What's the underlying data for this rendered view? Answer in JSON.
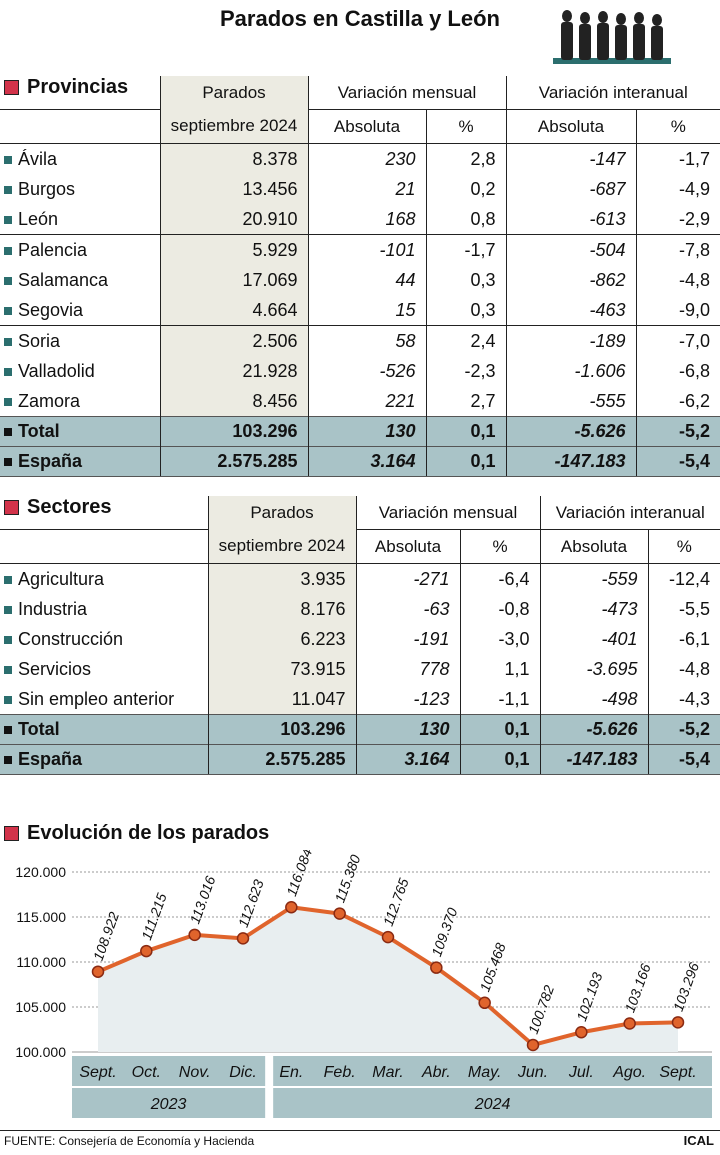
{
  "title": "Parados en Castilla y León",
  "provincias": {
    "heading": "Provincias",
    "col_parados": [
      "Parados",
      "septiembre 2024"
    ],
    "col_mensual": "Variación mensual",
    "col_interanual": "Variación interanual",
    "sub_abs": "Absoluta",
    "sub_pct": "%",
    "rows": [
      {
        "name": "Ávila",
        "parados": "8.378",
        "m_abs": "230",
        "m_pct": "2,8",
        "i_abs": "-147",
        "i_pct": "-1,7"
      },
      {
        "name": "Burgos",
        "parados": "13.456",
        "m_abs": "21",
        "m_pct": "0,2",
        "i_abs": "-687",
        "i_pct": "-4,9"
      },
      {
        "name": "León",
        "parados": "20.910",
        "m_abs": "168",
        "m_pct": "0,8",
        "i_abs": "-613",
        "i_pct": "-2,9"
      },
      {
        "name": "Palencia",
        "parados": "5.929",
        "m_abs": "-101",
        "m_pct": "-1,7",
        "i_abs": "-504",
        "i_pct": "-7,8"
      },
      {
        "name": "Salamanca",
        "parados": "17.069",
        "m_abs": "44",
        "m_pct": "0,3",
        "i_abs": "-862",
        "i_pct": "-4,8"
      },
      {
        "name": "Segovia",
        "parados": "4.664",
        "m_abs": "15",
        "m_pct": "0,3",
        "i_abs": "-463",
        "i_pct": "-9,0"
      },
      {
        "name": "Soria",
        "parados": "2.506",
        "m_abs": "58",
        "m_pct": "2,4",
        "i_abs": "-189",
        "i_pct": "-7,0"
      },
      {
        "name": "Valladolid",
        "parados": "21.928",
        "m_abs": "-526",
        "m_pct": "-2,3",
        "i_abs": "-1.606",
        "i_pct": "-6,8"
      },
      {
        "name": "Zamora",
        "parados": "8.456",
        "m_abs": "221",
        "m_pct": "2,7",
        "i_abs": "-555",
        "i_pct": "-6,2"
      }
    ],
    "total": {
      "name": "Total",
      "parados": "103.296",
      "m_abs": "130",
      "m_pct": "0,1",
      "i_abs": "-5.626",
      "i_pct": "-5,2"
    },
    "espana": {
      "name": "España",
      "parados": "2.575.285",
      "m_abs": "3.164",
      "m_pct": "0,1",
      "i_abs": "-147.183",
      "i_pct": "-5,4"
    }
  },
  "sectores": {
    "heading": "Sectores",
    "col_parados": [
      "Parados",
      "septiembre 2024"
    ],
    "col_mensual": "Variación mensual",
    "col_interanual": "Variación interanual",
    "sub_abs": "Absoluta",
    "sub_pct": "%",
    "rows": [
      {
        "name": "Agricultura",
        "parados": "3.935",
        "m_abs": "-271",
        "m_pct": "-6,4",
        "i_abs": "-559",
        "i_pct": "-12,4"
      },
      {
        "name": "Industria",
        "parados": "8.176",
        "m_abs": "-63",
        "m_pct": "-0,8",
        "i_abs": "-473",
        "i_pct": "-5,5"
      },
      {
        "name": "Construcción",
        "parados": "6.223",
        "m_abs": "-191",
        "m_pct": "-3,0",
        "i_abs": "-401",
        "i_pct": "-6,1"
      },
      {
        "name": "Servicios",
        "parados": "73.915",
        "m_abs": "778",
        "m_pct": "1,1",
        "i_abs": "-3.695",
        "i_pct": "-4,8"
      },
      {
        "name": "Sin empleo anterior",
        "parados": "11.047",
        "m_abs": "-123",
        "m_pct": "-1,1",
        "i_abs": "-498",
        "i_pct": "-4,3"
      }
    ],
    "total": {
      "name": "Total",
      "parados": "103.296",
      "m_abs": "130",
      "m_pct": "0,1",
      "i_abs": "-5.626",
      "i_pct": "-5,2"
    },
    "espana": {
      "name": "España",
      "parados": "2.575.285",
      "m_abs": "3.164",
      "m_pct": "0,1",
      "i_abs": "-147.183",
      "i_pct": "-5,4"
    }
  },
  "evolucion_heading": "Evolución de los parados",
  "chart_data": {
    "type": "line",
    "title": "Evolución de los parados",
    "categories": [
      "Sept.",
      "Oct.",
      "Nov.",
      "Dic.",
      "En.",
      "Feb.",
      "Mar.",
      "Abr.",
      "May.",
      "Jun.",
      "Jul.",
      "Ago.",
      "Sept."
    ],
    "year_groups": [
      {
        "label": "2023",
        "count": 4
      },
      {
        "label": "2024",
        "count": 9
      }
    ],
    "values": [
      108922,
      111215,
      113016,
      112623,
      116084,
      115380,
      112765,
      109370,
      105468,
      100782,
      102193,
      103166,
      103296
    ],
    "value_labels": [
      "108.922",
      "111.215",
      "113.016",
      "112.623",
      "116.084",
      "115.380",
      "112.765",
      "109.370",
      "105.468",
      "100.782",
      "102.193",
      "103.166",
      "103.296"
    ],
    "yticks": [
      "100.000",
      "105.000",
      "110.000",
      "115.000",
      "120.000"
    ],
    "ytick_values": [
      100000,
      105000,
      110000,
      115000,
      120000
    ],
    "ylim": [
      100000,
      120000
    ],
    "grid": true,
    "line_color": "#e0642c",
    "marker_color": "#e0642c",
    "area_color": "#e8eef0"
  },
  "footer": {
    "source": "FUENTE: Consejería de Economía y Hacienda",
    "brand": "ICAL"
  }
}
